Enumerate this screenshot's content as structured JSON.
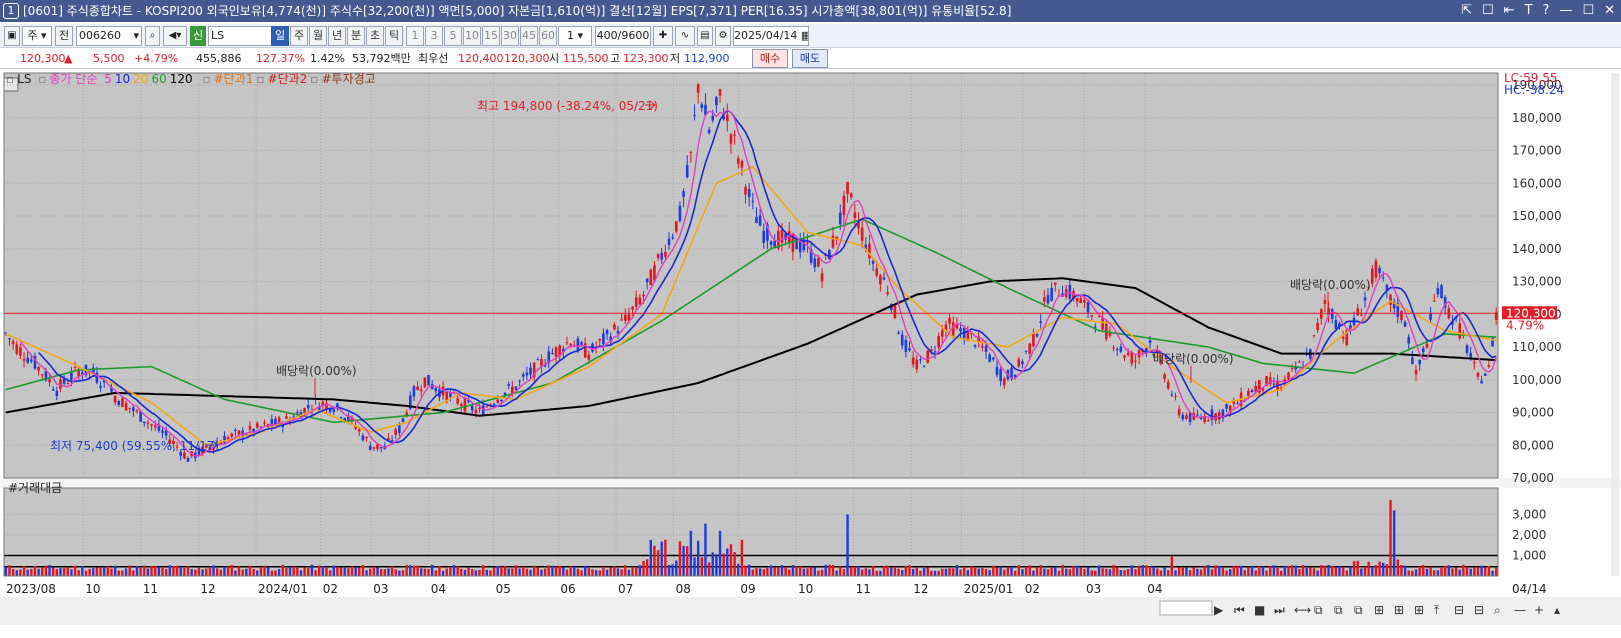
{
  "window": {
    "number": "1",
    "title": "[0601] 주식종합차트 - KOSPI200 외국인보유[4,774(천)] 주식수[32,200(천)] 액면[5,000] 자본금[1,610(억)] 결산[12월] EPS[7,371] PER[16.35] 시가총액[38,801(억)] 유통비율[52.8]",
    "tools": [
      "⇱",
      "☐",
      "⇤",
      "T",
      "?",
      "—",
      "☐",
      "✕"
    ]
  },
  "toolbar": {
    "mode": "주",
    "prefix": "전",
    "code": "006260",
    "name": "LS",
    "periods": [
      "일",
      "주",
      "월",
      "년",
      "분",
      "초",
      "틱"
    ],
    "selected_period": "일",
    "minutes": [
      "1",
      "3",
      "5",
      "10",
      "15",
      "30",
      "45",
      "60"
    ],
    "interval": "1",
    "count": "400/9600",
    "date": "2025/04/14",
    "badge": "신"
  },
  "quote": {
    "price": "120,300",
    "change_arrow": "▲",
    "change": "5,500",
    "change_pct": "+4.79%",
    "volume": "455,886",
    "vol_ratio": "127.37%",
    "turnover": "1.42%",
    "amount": "53,792백만",
    "best_label": "최우선",
    "ask": "120,400",
    "bid": "120,300",
    "open_label": "시",
    "open": "115,500",
    "high_label": "고",
    "high": "123,300",
    "low_label": "저",
    "low": "112,900",
    "buy": "매수",
    "sell": "매도"
  },
  "legend": {
    "name": "LS",
    "ma_label": "종가 단순",
    "mas": [
      {
        "p": "5",
        "c": "#e040c0"
      },
      {
        "p": "10",
        "c": "#1a2ad0"
      },
      {
        "p": "20",
        "c": "#f0a818"
      },
      {
        "p": "60",
        "c": "#20a030"
      },
      {
        "p": "120",
        "c": "#000000"
      }
    ],
    "items": [
      {
        "t": "#단과1",
        "c": "#e07010"
      },
      {
        "t": "#단과2",
        "c": "#d02020"
      },
      {
        "t": "#투자경고",
        "c": "#8b3a1a"
      }
    ]
  },
  "chart_data": {
    "type": "candlestick",
    "price_axis": {
      "min": 70000,
      "max": 190000,
      "ticks": [
        "190,000",
        "180,000",
        "170,000",
        "160,000",
        "150,000",
        "140,000",
        "130,000",
        "120,000",
        "110,000",
        "100,000",
        "90,000",
        "80,000",
        "70,000"
      ]
    },
    "lc_label": "LC:59.55",
    "hc_label": "HC:-38.24",
    "current_price": "120,300",
    "current_pct": "4.79%",
    "current_value": 120300,
    "x_labels": [
      "2023/08",
      "10",
      "11",
      "12",
      "2024/01",
      "02",
      "03",
      "04",
      "05",
      "06",
      "07",
      "08",
      "09",
      "10",
      "11",
      "12",
      "2025/01",
      "02",
      "03",
      "04",
      "04/14"
    ],
    "annotations": [
      {
        "text": "최고 194,800 (-38.24%, 05/21)",
        "color": "#e0202a"
      },
      {
        "text": "최저 75,400 (59.55%, 11/17)",
        "color": "#1e3fd0"
      },
      {
        "text": "배당락(0.00%)",
        "color": "#333"
      },
      {
        "text": "배당락(0.00%)",
        "color": "#333"
      },
      {
        "text": "배당락(0.00%)",
        "color": "#333"
      }
    ],
    "price_series": [
      [
        0,
        114000
      ],
      [
        3,
        110000
      ],
      [
        8,
        105000
      ],
      [
        14,
        97000
      ],
      [
        20,
        103000
      ],
      [
        24,
        102000
      ],
      [
        30,
        95000
      ],
      [
        38,
        88000
      ],
      [
        45,
        82000
      ],
      [
        50,
        76000
      ],
      [
        55,
        79000
      ],
      [
        60,
        82000
      ],
      [
        66,
        84000
      ],
      [
        72,
        86000
      ],
      [
        78,
        88000
      ],
      [
        85,
        93000
      ],
      [
        90,
        92000
      ],
      [
        96,
        86000
      ],
      [
        100,
        80000
      ],
      [
        104,
        79000
      ],
      [
        108,
        85000
      ],
      [
        112,
        96000
      ],
      [
        115,
        100000
      ],
      [
        120,
        96000
      ],
      [
        125,
        93000
      ],
      [
        130,
        90000
      ],
      [
        134,
        94000
      ],
      [
        140,
        98000
      ],
      [
        145,
        103000
      ],
      [
        150,
        108000
      ],
      [
        155,
        112000
      ],
      [
        160,
        108000
      ],
      [
        165,
        113000
      ],
      [
        170,
        118000
      ],
      [
        175,
        126000
      ],
      [
        180,
        138000
      ],
      [
        185,
        150000
      ],
      [
        188,
        168000
      ],
      [
        190,
        190000
      ],
      [
        193,
        176000
      ],
      [
        196,
        186000
      ],
      [
        200,
        172000
      ],
      [
        205,
        152000
      ],
      [
        208,
        145000
      ],
      [
        212,
        143000
      ],
      [
        216,
        142000
      ],
      [
        220,
        140000
      ],
      [
        224,
        133000
      ],
      [
        228,
        145000
      ],
      [
        231,
        157000
      ],
      [
        234,
        148000
      ],
      [
        238,
        136000
      ],
      [
        242,
        128000
      ],
      [
        246,
        112000
      ],
      [
        250,
        104000
      ],
      [
        254,
        108000
      ],
      [
        258,
        117000
      ],
      [
        262,
        115000
      ],
      [
        266,
        112000
      ],
      [
        270,
        107000
      ],
      [
        274,
        100000
      ],
      [
        278,
        104000
      ],
      [
        282,
        112000
      ],
      [
        286,
        126000
      ],
      [
        290,
        128000
      ],
      [
        294,
        125000
      ],
      [
        298,
        120000
      ],
      [
        302,
        115000
      ],
      [
        306,
        109000
      ],
      [
        310,
        106000
      ],
      [
        314,
        112000
      ],
      [
        318,
        102000
      ],
      [
        322,
        90000
      ],
      [
        326,
        88000
      ],
      [
        330,
        89000
      ],
      [
        334,
        90000
      ],
      [
        338,
        93000
      ],
      [
        342,
        97000
      ],
      [
        346,
        99000
      ],
      [
        350,
        98000
      ],
      [
        354,
        103000
      ],
      [
        358,
        108000
      ],
      [
        362,
        124000
      ],
      [
        365,
        118000
      ],
      [
        368,
        113000
      ],
      [
        372,
        122000
      ],
      [
        376,
        134000
      ],
      [
        380,
        124000
      ],
      [
        384,
        118000
      ],
      [
        387,
        101000
      ],
      [
        390,
        112000
      ],
      [
        393,
        129000
      ],
      [
        396,
        121000
      ],
      [
        400,
        113000
      ],
      [
        404,
        100000
      ],
      [
        407,
        103000
      ],
      [
        409,
        120300
      ]
    ],
    "ma120": [
      [
        0,
        90000
      ],
      [
        30,
        96000
      ],
      [
        60,
        95000
      ],
      [
        90,
        94000
      ],
      [
        110,
        92000
      ],
      [
        130,
        89000
      ],
      [
        160,
        92000
      ],
      [
        190,
        99000
      ],
      [
        220,
        111000
      ],
      [
        250,
        126000
      ],
      [
        270,
        130000
      ],
      [
        290,
        131000
      ],
      [
        310,
        128000
      ],
      [
        330,
        116000
      ],
      [
        350,
        108000
      ],
      [
        380,
        108000
      ],
      [
        409,
        106000
      ]
    ],
    "ma60": [
      [
        0,
        97000
      ],
      [
        20,
        103000
      ],
      [
        40,
        104000
      ],
      [
        60,
        94000
      ],
      [
        90,
        87000
      ],
      [
        120,
        90000
      ],
      [
        150,
        99000
      ],
      [
        180,
        118000
      ],
      [
        210,
        140000
      ],
      [
        235,
        149000
      ],
      [
        255,
        139000
      ],
      [
        275,
        128000
      ],
      [
        300,
        115000
      ],
      [
        330,
        110000
      ],
      [
        345,
        105000
      ],
      [
        370,
        102000
      ],
      [
        395,
        114000
      ],
      [
        409,
        113000
      ]
    ],
    "ma20": [
      [
        0,
        114000
      ],
      [
        20,
        104000
      ],
      [
        40,
        93000
      ],
      [
        55,
        80000
      ],
      [
        70,
        84000
      ],
      [
        85,
        91000
      ],
      [
        100,
        84000
      ],
      [
        110,
        87000
      ],
      [
        125,
        96000
      ],
      [
        140,
        94000
      ],
      [
        160,
        104000
      ],
      [
        180,
        120000
      ],
      [
        195,
        160000
      ],
      [
        205,
        165000
      ],
      [
        220,
        145000
      ],
      [
        235,
        141000
      ],
      [
        245,
        128000
      ],
      [
        260,
        113000
      ],
      [
        275,
        110000
      ],
      [
        290,
        119000
      ],
      [
        305,
        117000
      ],
      [
        320,
        104000
      ],
      [
        335,
        93000
      ],
      [
        350,
        97000
      ],
      [
        365,
        112000
      ],
      [
        380,
        124000
      ],
      [
        395,
        115000
      ],
      [
        409,
        112000
      ]
    ],
    "volume_axis": {
      "max": 3800,
      "ticks": [
        "3,000",
        "2,000",
        "1,000"
      ]
    },
    "volume_label": "#거래대금"
  }
}
